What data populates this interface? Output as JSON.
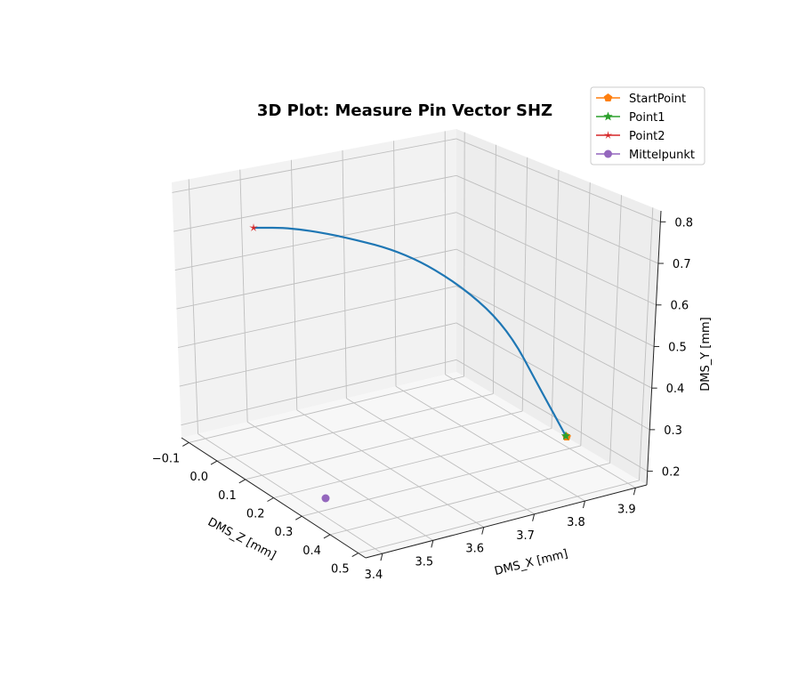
{
  "chart_data": {
    "type": "line",
    "projection": "3d",
    "title": "3D Plot: Measure Pin Vector SHZ",
    "xlabel": "DMS_X [mm]",
    "ylabel": "DMS_Y [mm]",
    "zlabel": "DMS_Z [mm]",
    "xticks": [
      "3.4",
      "3.5",
      "3.6",
      "3.7",
      "3.8",
      "3.9"
    ],
    "yticks": [
      "0.2",
      "0.3",
      "0.4",
      "0.5",
      "0.6",
      "0.7",
      "0.8"
    ],
    "zticks": [
      "−0.1",
      "0.0",
      "0.1",
      "0.2",
      "0.3",
      "0.4",
      "0.5"
    ],
    "xlim": [
      3.34,
      3.97
    ],
    "ylim": [
      0.18,
      0.84
    ],
    "zlim": [
      -0.13,
      0.52
    ],
    "grid": true,
    "legend_position": "top-right",
    "curve": {
      "color": "#1f77b4",
      "points": [
        {
          "x": 3.85,
          "y": 0.3
        },
        {
          "x": 3.81,
          "y": 0.41
        },
        {
          "x": 3.76,
          "y": 0.55
        },
        {
          "x": 3.69,
          "y": 0.65
        },
        {
          "x": 3.6,
          "y": 0.73
        },
        {
          "x": 3.5,
          "y": 0.77
        },
        {
          "x": 3.42,
          "y": 0.79
        },
        {
          "x": 3.36,
          "y": 0.79
        }
      ]
    },
    "series": [
      {
        "name": "StartPoint",
        "color": "#ff7f0e",
        "marker": "pentagon"
      },
      {
        "name": "Point1",
        "color": "#2ca02c",
        "marker": "star"
      },
      {
        "name": "Point2",
        "color": "#d62728",
        "marker": "star-thin"
      },
      {
        "name": "Mittelpunkt",
        "color": "#9467bd",
        "marker": "circle"
      }
    ]
  }
}
